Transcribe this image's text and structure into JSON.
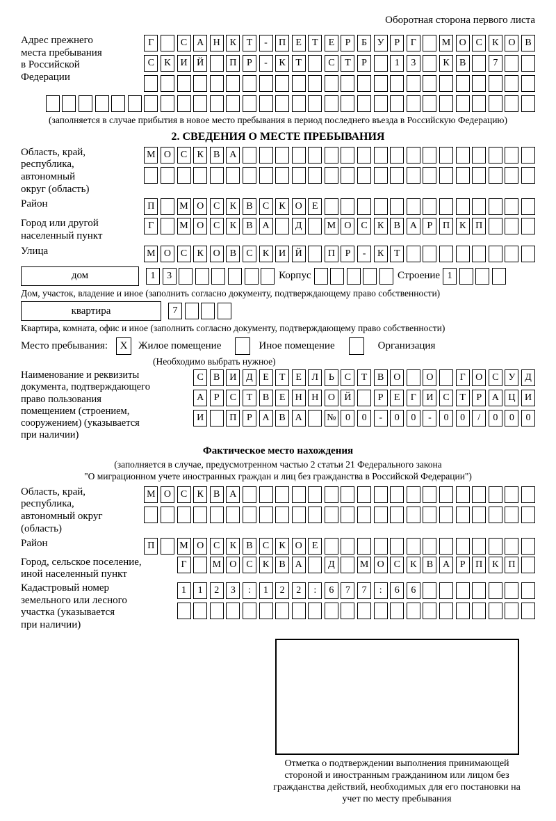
{
  "header": {
    "note": "Оборотная сторона первого листа"
  },
  "prev_address": {
    "label": "Адрес прежнего\nместа пребывания\nв Российской\nФедерации",
    "row1": {
      "text": "Г САНКТ-ПЕТЕРБУРГ МОСКОВ",
      "len": 24
    },
    "row2": {
      "text": "СКИЙ ПР-КТ СТР 13 КВ 7",
      "len": 24
    },
    "row3": {
      "text": "",
      "len": 24
    },
    "row4": {
      "text": "",
      "len": 30
    },
    "note": "(заполняется в случае прибытия в новое место пребывания в период последнего въезда в Российскую Федерацию)"
  },
  "section2": {
    "title": "2. СВЕДЕНИЯ О МЕСТЕ ПРЕБЫВАНИЯ",
    "region": {
      "label": "Область, край,\nреспублика,\nавтономный\nокруг (область)",
      "row1": {
        "text": "МОСКВА",
        "len": 24
      },
      "row2": {
        "text": "",
        "len": 24
      }
    },
    "district": {
      "label": "Район",
      "row": {
        "text": "П МОСКВСКОЕ",
        "len": 24
      }
    },
    "city": {
      "label": "Город или другой\nнаселенный пункт",
      "row": {
        "text": "Г МОСКВА Д МОСКВАРПКП",
        "len": 24
      }
    },
    "street": {
      "label": "Улица",
      "row": {
        "text": "МОСКОВСКИЙ ПР-КТ",
        "len": 24
      }
    },
    "house": {
      "box_label": "дом",
      "number": {
        "text": "13",
        "len": 8
      },
      "korpus_label": "Корпус",
      "korpus": {
        "text": "",
        "len": 5
      },
      "stroenie_label": "Строение",
      "stroenie": {
        "text": "1",
        "len": 4
      }
    },
    "house_note": "Дом, участок, владение и иное (заполнить согласно документу, подтверждающему право собственности)",
    "apartment": {
      "box_label": "квартира",
      "number": {
        "text": "7",
        "len": 4
      }
    },
    "apartment_note": "Квартира, комната, офис и иное (заполнить согласно документу, подтверждающему право собственности)",
    "stay_type": {
      "label": "Место пребывания:",
      "options": [
        {
          "label": "Жилое помещение",
          "mark": "X"
        },
        {
          "label": "Иное помещение",
          "mark": ""
        },
        {
          "label": "Организация",
          "mark": ""
        }
      ],
      "note": "(Необходимо выбрать нужное)"
    },
    "document": {
      "label": "Наименование и реквизиты\nдокумента, подтверждающего\nправо пользования\nпомещением (строением,\nсооружением) (указывается\nпри наличии)",
      "row1": {
        "text": "СВИДЕТЕЛЬСТВО О ГОСУД",
        "len": 21
      },
      "row2": {
        "text": "АРСТВЕННОЙ РЕГИСТРАЦИ",
        "len": 21
      },
      "row3": {
        "text": "И ПРАВА №00-00-00/000",
        "len": 21
      }
    }
  },
  "actual_location": {
    "title": "Фактическое место нахождения",
    "subtitle_line1": "(заполняется в случае, предусмотренном частью 2 статьи 21 Федерального закона",
    "subtitle_line2": "\"О миграционном учете иностранных граждан и лиц без гражданства в Российской Федерации\")",
    "region": {
      "label": "Область, край,\nреспублика,\nавтономный округ\n(область)",
      "row1": {
        "text": "МОСКВА",
        "len": 24
      },
      "row2": {
        "text": "",
        "len": 24
      }
    },
    "district": {
      "label": "Район",
      "row": {
        "text": "П МОСКВСКОЕ",
        "len": 24
      }
    },
    "city": {
      "label": "Город, сельское поселение,\nиной населенный пункт",
      "row": {
        "text": "Г МОСКВА Д МОСКВАРПКП",
        "len": 22
      }
    },
    "cadastral": {
      "label": "Кадастровый номер\nземельного или лесного\nучастка (указывается\nпри наличии)",
      "row1": {
        "text": "1123:122:677:66",
        "len": 22
      },
      "row2": {
        "text": "",
        "len": 22
      }
    }
  },
  "confirmation": {
    "note": "Отметка о подтверждении выполнения принимающей стороной и иностранным гражданином или лицом без гражданства действий, необходимых для его постановки на учет по месту пребывания"
  }
}
